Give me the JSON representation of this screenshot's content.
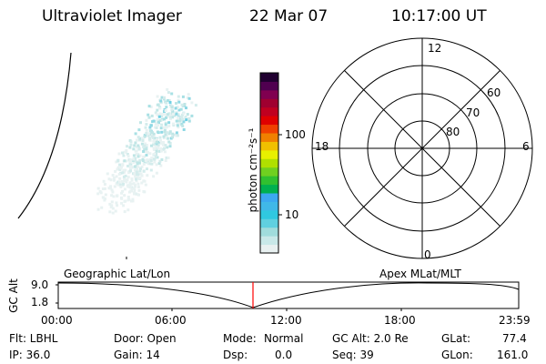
{
  "header": {
    "instrument": "Ultraviolet Imager",
    "date": "22 Mar 07",
    "time": "10:17:00 UT"
  },
  "colorbar": {
    "label": "photon cm⁻²s⁻¹",
    "ticks": [
      "100",
      "10"
    ],
    "colors": [
      "#e8f0f0",
      "#c8e8e8",
      "#a0dcdc",
      "#60d0e0",
      "#30c8e0",
      "#40b8e8",
      "#3ca8f0",
      "#00b050",
      "#30c030",
      "#70d020",
      "#b0e000",
      "#e8f000",
      "#f0c000",
      "#f08000",
      "#f04000",
      "#e00000",
      "#c00020",
      "#a00030",
      "#800050",
      "#500050",
      "#200030"
    ]
  },
  "polar_plot": {
    "mlt_labels": [
      "12",
      "18",
      "6",
      "0"
    ],
    "lat_labels": [
      "60",
      "70",
      "80"
    ]
  },
  "timeline": {
    "left_title": "Geographic Lat/Lon",
    "right_title": "Apex MLat/MLT",
    "axis_label": "GC Alt",
    "y_ticks": [
      "9.0",
      "1.8"
    ],
    "x_ticks": [
      "00:00",
      "06:00",
      "12:00",
      "18:00",
      "23:59"
    ],
    "marker_color": "#ff0000"
  },
  "info": {
    "filter": "Flt: LBHL",
    "ip": "IP: 36.0",
    "door": "Door: Open",
    "gain": "Gain: 14",
    "mode_label": "Mode:",
    "mode_value": "Normal",
    "dsp_label": "Dsp:",
    "dsp_value": "0.0",
    "gc_alt": "GC Alt: 2.0 Re",
    "seq": "Seq: 39",
    "glat_label": "GLat:",
    "glat_value": "77.4",
    "glon_label": "GLon:",
    "glon_value": "161.0"
  }
}
